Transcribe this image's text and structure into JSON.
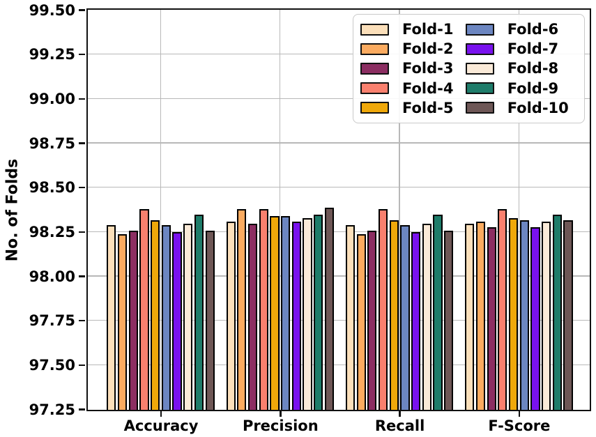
{
  "chart_data": {
    "type": "bar",
    "title": "",
    "xlabel": "",
    "ylabel": "No. of Folds",
    "ylim": [
      97.25,
      99.5
    ],
    "ytick_step": 0.25,
    "ytick_labels": [
      "99.50",
      "99.25",
      "99.00",
      "98.75",
      "98.50",
      "98.25",
      "98.00",
      "97.75",
      "97.50",
      "97.25"
    ],
    "grid": true,
    "legend_position": "upper right",
    "bar_edge_color": "#000000",
    "categories": [
      "Accuracy",
      "Precision",
      "Recall",
      "F-Score"
    ],
    "series": [
      {
        "name": "Fold-1",
        "color": "#FBDFBA",
        "values": [
          98.29,
          98.31,
          98.29,
          98.3
        ]
      },
      {
        "name": "Fold-2",
        "color": "#FBAB60",
        "values": [
          98.24,
          98.38,
          98.24,
          98.31
        ]
      },
      {
        "name": "Fold-3",
        "color": "#8C2E62",
        "values": [
          98.26,
          98.3,
          98.26,
          98.28
        ]
      },
      {
        "name": "Fold-4",
        "color": "#F9806E",
        "values": [
          98.38,
          98.38,
          98.38,
          98.38
        ]
      },
      {
        "name": "Fold-5",
        "color": "#EFA80A",
        "values": [
          98.32,
          98.34,
          98.32,
          98.33
        ]
      },
      {
        "name": "Fold-6",
        "color": "#6C86C1",
        "values": [
          98.29,
          98.34,
          98.29,
          98.32
        ]
      },
      {
        "name": "Fold-7",
        "color": "#7912EE",
        "values": [
          98.25,
          98.31,
          98.25,
          98.28
        ]
      },
      {
        "name": "Fold-8",
        "color": "#FAEAD8",
        "values": [
          98.3,
          98.33,
          98.3,
          98.31
        ]
      },
      {
        "name": "Fold-9",
        "color": "#1E7C6A",
        "values": [
          98.35,
          98.35,
          98.35,
          98.35
        ]
      },
      {
        "name": "Fold-10",
        "color": "#6E5756",
        "values": [
          98.26,
          98.39,
          98.26,
          98.32
        ]
      }
    ]
  }
}
